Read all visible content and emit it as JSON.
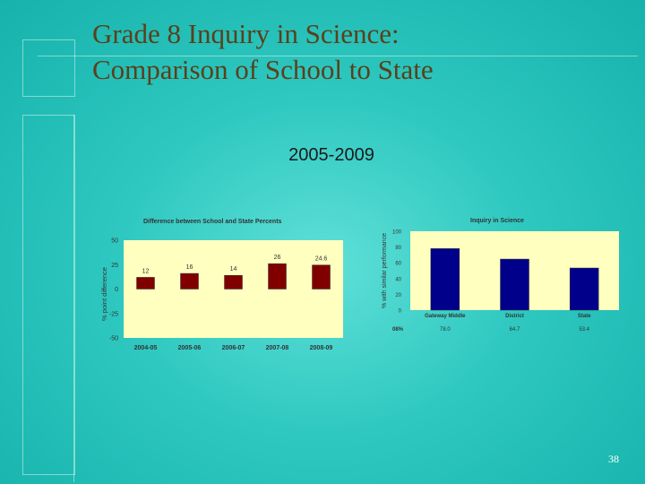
{
  "slide": {
    "title_line1": "Grade 8 Inquiry in Science:",
    "title_line2": "Comparison of School to State",
    "subtitle": "2005-2009",
    "page_number": "38"
  },
  "colors": {
    "plot_bg": "#ffffc0",
    "bar_left": "#800000",
    "bar_right": "#00008b",
    "title_text": "#5c3f1b"
  },
  "chart_data": [
    {
      "type": "bar",
      "title": "Difference between School and State Percents",
      "ylabel": "% point difference",
      "xlabel": "",
      "categories": [
        "2004-05",
        "2005-06",
        "2006-07",
        "2007-08",
        "2008-09"
      ],
      "values": [
        12,
        16,
        14,
        26,
        24.6
      ],
      "value_labels": [
        "12",
        "16",
        "14",
        "26",
        "24.6"
      ],
      "yticks": [
        50,
        25,
        0,
        -25,
        -50
      ],
      "ylim": [
        -50,
        50
      ],
      "grid": false,
      "color": "#800000"
    },
    {
      "type": "bar",
      "title": "Inquiry in Science",
      "ylabel": "% with similar performance",
      "xlabel": "",
      "categories": [
        "Gateway Middle",
        "District",
        "State"
      ],
      "values": [
        78.0,
        64.7,
        53.4
      ],
      "row_header": "08%",
      "value_labels": [
        "78.0",
        "64.7",
        "53.4"
      ],
      "yticks": [
        100,
        80,
        60,
        40,
        20,
        0
      ],
      "ylim": [
        0,
        100
      ],
      "grid": false,
      "color": "#00008b"
    }
  ]
}
